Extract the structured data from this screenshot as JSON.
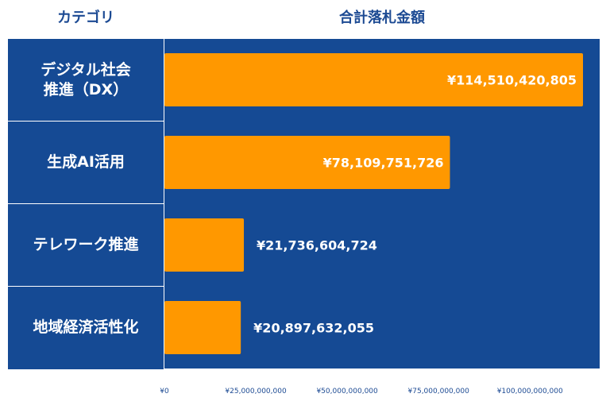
{
  "headers": {
    "category": "カテゴリ",
    "amount": "合計落札金額"
  },
  "colors": {
    "panel": "#154a94",
    "bar": "#ff9800",
    "text": "#ffffff",
    "header": "#1c4a93",
    "tick": "#1c4a93"
  },
  "chart_data": {
    "type": "bar",
    "orientation": "horizontal",
    "categories": [
      "デジタル社会\n推進（DX）",
      "生成AI活用",
      "テレワーク推進",
      "地域経済活性化"
    ],
    "values": [
      114510420805,
      78109751726,
      21736604724,
      20897632055
    ],
    "value_labels": [
      "¥114,510,420,805",
      "¥78,109,751,726",
      "¥21,736,604,724",
      "¥20,897,632,055"
    ],
    "x_ticks": [
      0,
      25000000000,
      50000000000,
      75000000000,
      100000000000
    ],
    "x_tick_labels": [
      "¥0",
      "¥25,000,000,000",
      "¥50,000,000,000",
      "¥75,000,000,000",
      "¥100,000,000,000"
    ],
    "xlim": [
      0,
      114510420805
    ],
    "grid": false
  }
}
